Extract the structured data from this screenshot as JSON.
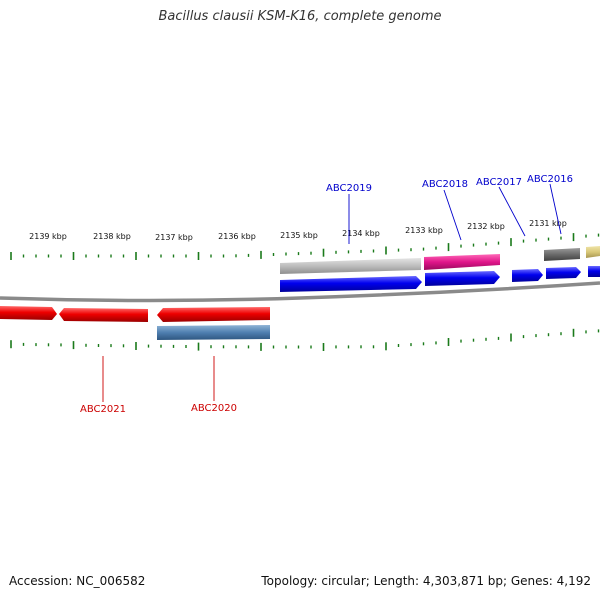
{
  "title": "Bacillus clausii KSM-K16, complete genome",
  "footer": {
    "accession": "Accession: NC_006582",
    "summary": "Topology: circular; Length: 4,303,871 bp; Genes: 4,192"
  },
  "scale_labels": [
    "2139 kbp",
    "2138 kbp",
    "2137 kbp",
    "2136 kbp",
    "2135 kbp",
    "2134 kbp",
    "2133 kbp",
    "2132 kbp",
    "2131 kbp"
  ],
  "gene_labels": {
    "top": [
      "ABC2019",
      "ABC2018",
      "ABC2017",
      "ABC2016"
    ],
    "bottom": [
      "ABC2021",
      "ABC2020"
    ]
  },
  "colors": {
    "forward_gene": "#0000e6",
    "reverse_gene": "#e60000",
    "backbone": "#8c8c8c",
    "ticks": "#1a7a1a",
    "abc2018_feature": "#e01c8a",
    "abc2019_feature": "#bcbcbc",
    "abc2020_feature": "#4f7fb0",
    "abc2016_feature": "#6e6e6e",
    "edge_feature": "#d9c878"
  }
}
